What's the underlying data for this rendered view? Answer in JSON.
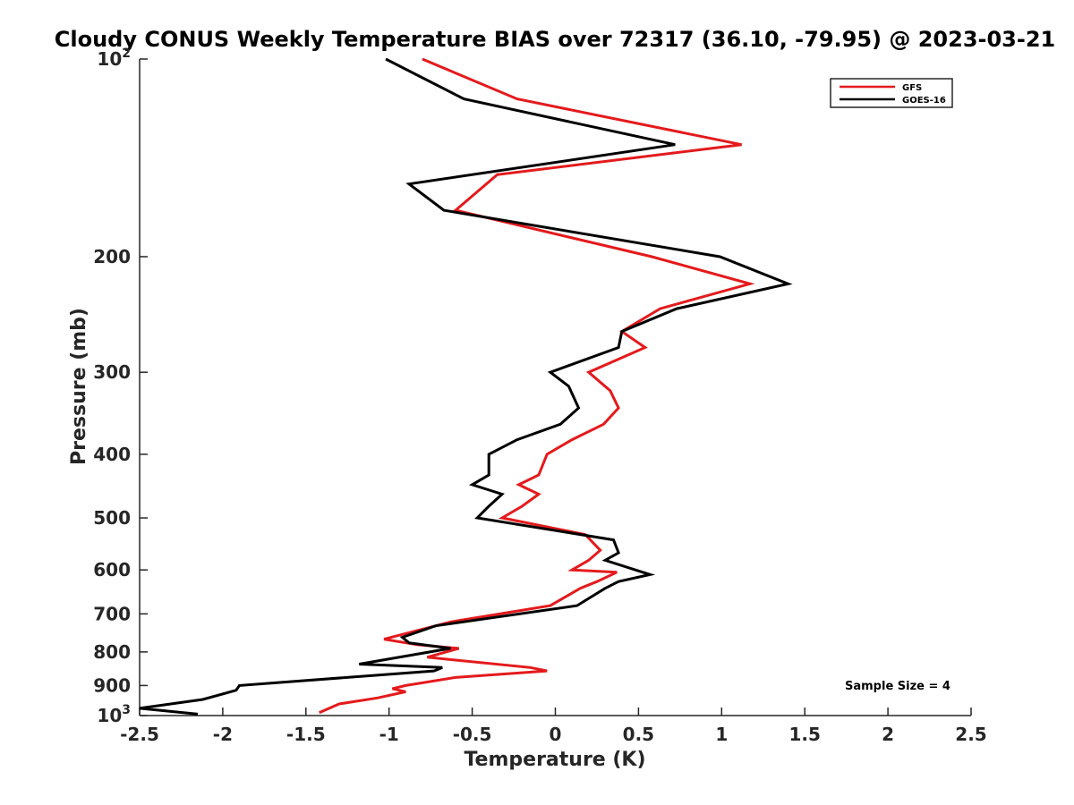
{
  "chart_data": {
    "type": "line",
    "title": "Cloudy CONUS Weekly Temperature BIAS over 72317 (36.10, -79.95) @ 2023-03-21",
    "xlabel": "Temperature (K)",
    "ylabel": "Pressure (mb)",
    "xlim": [
      -2.5,
      2.5
    ],
    "ylim": [
      100,
      1000
    ],
    "yscale": "log",
    "reversed_y": true,
    "grid": false,
    "legend_position": "top-right",
    "xticks": [
      "-2.5",
      "-2",
      "-1.5",
      "-1",
      "-0.5",
      "0",
      "0.5",
      "1",
      "1.5",
      "2",
      "2.5"
    ],
    "yticks": [
      {
        "value": 100,
        "base": "10",
        "exp": "2"
      },
      {
        "value": 200,
        "label": "200"
      },
      {
        "value": 300,
        "label": "300"
      },
      {
        "value": 400,
        "label": "400"
      },
      {
        "value": 500,
        "label": "500"
      },
      {
        "value": 600,
        "label": "600"
      },
      {
        "value": 700,
        "label": "700"
      },
      {
        "value": 800,
        "label": "800"
      },
      {
        "value": 900,
        "label": "900"
      },
      {
        "value": 1000,
        "base": "10",
        "exp": "3"
      }
    ],
    "series": [
      {
        "name": "GFS",
        "color": "#e41a1c",
        "points": [
          [
            -0.8,
            100
          ],
          [
            -0.23,
            115
          ],
          [
            1.12,
            135
          ],
          [
            -0.35,
            150
          ],
          [
            -0.6,
            170
          ],
          [
            0.58,
            200
          ],
          [
            1.17,
            220
          ],
          [
            0.63,
            240
          ],
          [
            0.4,
            260
          ],
          [
            0.54,
            275
          ],
          [
            0.2,
            300
          ],
          [
            0.33,
            320
          ],
          [
            0.38,
            340
          ],
          [
            0.29,
            360
          ],
          [
            0.1,
            380
          ],
          [
            -0.05,
            400
          ],
          [
            -0.1,
            430
          ],
          [
            -0.22,
            445
          ],
          [
            -0.1,
            460
          ],
          [
            -0.2,
            480
          ],
          [
            -0.32,
            500
          ],
          [
            0.18,
            530
          ],
          [
            0.27,
            560
          ],
          [
            0.2,
            580
          ],
          [
            0.1,
            600
          ],
          [
            0.37,
            605
          ],
          [
            0.25,
            625
          ],
          [
            0.15,
            640
          ],
          [
            -0.03,
            680
          ],
          [
            -0.63,
            720
          ],
          [
            -0.9,
            750
          ],
          [
            -1.03,
            765
          ],
          [
            -0.83,
            780
          ],
          [
            -0.58,
            790
          ],
          [
            -0.77,
            815
          ],
          [
            -0.15,
            845
          ],
          [
            -0.05,
            855
          ],
          [
            -0.6,
            875
          ],
          [
            -0.9,
            900
          ],
          [
            -0.98,
            910
          ],
          [
            -0.9,
            920
          ],
          [
            -1.07,
            940
          ],
          [
            -1.3,
            960
          ],
          [
            -1.42,
            990
          ]
        ]
      },
      {
        "name": "GOES-16",
        "color": "#000000",
        "points": [
          [
            -1.02,
            100
          ],
          [
            -0.55,
            115
          ],
          [
            0.72,
            135
          ],
          [
            -0.88,
            155
          ],
          [
            -0.67,
            170
          ],
          [
            0.99,
            200
          ],
          [
            1.4,
            220
          ],
          [
            0.73,
            240
          ],
          [
            0.4,
            260
          ],
          [
            0.38,
            275
          ],
          [
            -0.03,
            300
          ],
          [
            0.08,
            315
          ],
          [
            0.14,
            340
          ],
          [
            0.03,
            360
          ],
          [
            -0.23,
            380
          ],
          [
            -0.4,
            400
          ],
          [
            -0.4,
            430
          ],
          [
            -0.5,
            445
          ],
          [
            -0.32,
            460
          ],
          [
            -0.4,
            480
          ],
          [
            -0.47,
            500
          ],
          [
            0.35,
            540
          ],
          [
            0.38,
            565
          ],
          [
            0.3,
            580
          ],
          [
            0.57,
            610
          ],
          [
            0.38,
            625
          ],
          [
            0.3,
            640
          ],
          [
            0.13,
            680
          ],
          [
            -0.72,
            730
          ],
          [
            -0.92,
            760
          ],
          [
            -0.88,
            775
          ],
          [
            -0.63,
            790
          ],
          [
            -1.18,
            835
          ],
          [
            -0.68,
            845
          ],
          [
            -0.73,
            855
          ],
          [
            -1.9,
            900
          ],
          [
            -1.92,
            915
          ],
          [
            -2.12,
            945
          ],
          [
            -2.5,
            975
          ],
          [
            -2.15,
            995
          ]
        ]
      }
    ],
    "annotation": "Sample Size = 4"
  }
}
